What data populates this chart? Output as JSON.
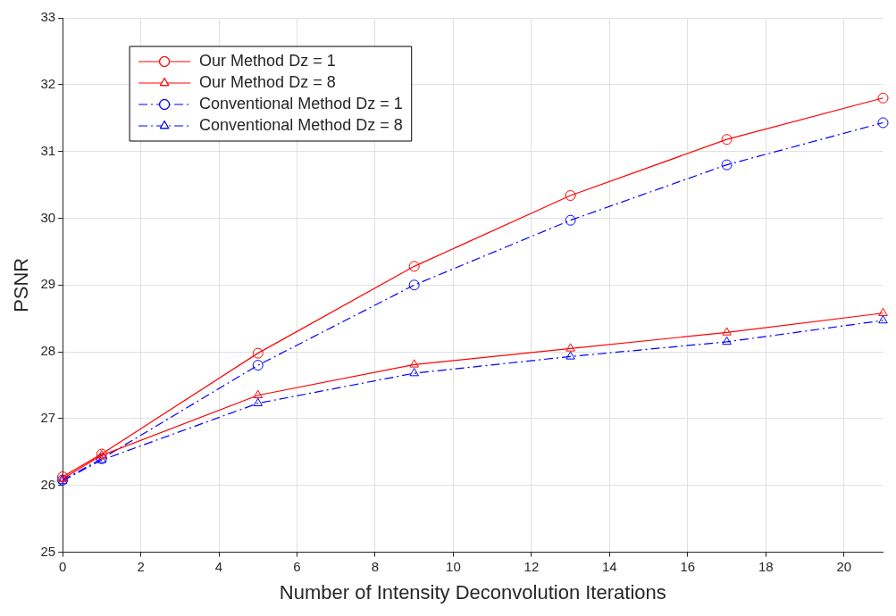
{
  "chart_data": {
    "type": "line",
    "xlabel": "Number of Intensity Deconvolution Iterations",
    "ylabel": "PSNR",
    "x": [
      0,
      1,
      5,
      9,
      13,
      17,
      21
    ],
    "xlim": [
      0,
      21
    ],
    "xticks": [
      0,
      2,
      4,
      6,
      8,
      10,
      12,
      14,
      16,
      18,
      20
    ],
    "ylim": [
      25,
      33
    ],
    "yticks": [
      25,
      26,
      27,
      28,
      29,
      30,
      31,
      32,
      33
    ],
    "grid": true,
    "legend": "top left",
    "series": [
      {
        "name": "Our Method Dz = 1",
        "color": "#ff0000",
        "marker": "circle",
        "line_style": "solid",
        "values": [
          26.13,
          26.47,
          27.98,
          29.28,
          30.34,
          31.18,
          31.8
        ]
      },
      {
        "name": "Our Method Dz = 8",
        "color": "#ff0000",
        "marker": "triangle",
        "line_style": "solid",
        "values": [
          26.1,
          26.45,
          27.35,
          27.81,
          28.05,
          28.29,
          28.58
        ]
      },
      {
        "name": "Conventional Method Dz = 1",
        "color": "#0000ff",
        "marker": "circle",
        "line_style": "dashed",
        "values": [
          26.08,
          26.4,
          27.8,
          29.0,
          29.97,
          30.8,
          31.43
        ]
      },
      {
        "name": "Conventional Method Dz = 8",
        "color": "#0000ff",
        "marker": "triangle",
        "line_style": "dashed",
        "values": [
          26.07,
          26.38,
          27.23,
          27.68,
          27.93,
          28.15,
          28.47
        ]
      }
    ]
  }
}
